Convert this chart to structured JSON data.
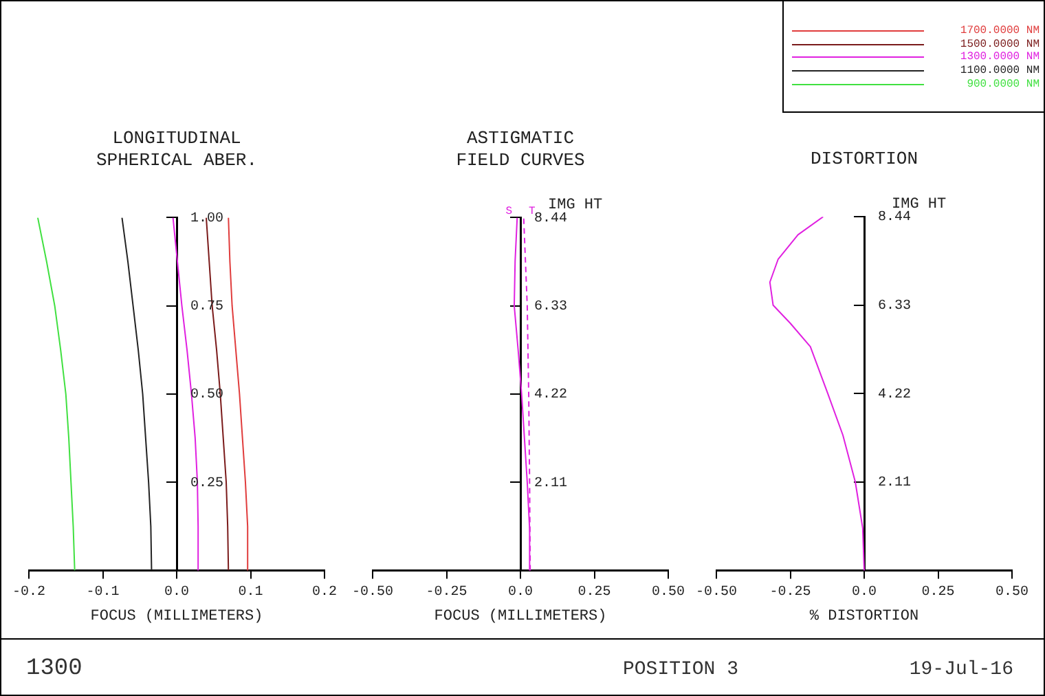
{
  "chart_data": [
    {
      "type": "line",
      "title": "LONGITUDINAL\nSPHERICAL ABER.",
      "xlabel": "FOCUS (MILLIMETERS)",
      "xlim": [
        -0.2,
        0.2
      ],
      "xticks": [
        -0.2,
        -0.1,
        {
          "value": 0,
          "label": "0.0"
        },
        0.1,
        0.2
      ],
      "ylim": [
        0,
        1
      ],
      "yticks": [
        0.25,
        {
          "value": 0.5,
          "label": "0.50"
        },
        0.75,
        {
          "value": 1,
          "label": "1.00"
        }
      ],
      "grid": false,
      "marker": "none",
      "legend": "top right",
      "series": [
        {
          "name": "1700.0000 NM",
          "color": "#e03c3c",
          "x": [
            0.097,
            0.096,
            0.093,
            0.089,
            0.085,
            0.08,
            0.075,
            0.072,
            0.07
          ],
          "values": [
            0,
            0.125,
            0.25,
            0.375,
            0.5,
            0.625,
            0.75,
            0.875,
            1
          ]
        },
        {
          "name": "1500.0000 NM",
          "color": "#7a1a1a",
          "x": [
            0.07,
            0.069,
            0.067,
            0.063,
            0.059,
            0.054,
            0.048,
            0.044,
            0.04
          ],
          "values": [
            0,
            0.125,
            0.25,
            0.375,
            0.5,
            0.625,
            0.75,
            0.875,
            1
          ]
        },
        {
          "name": "1300.0000 NM",
          "color": "#e020e0",
          "x": [
            0.03,
            0.029,
            0.028,
            0.025,
            0.02,
            0.014,
            0.007,
            0.001,
            -0.005
          ],
          "values": [
            0,
            0.125,
            0.25,
            0.375,
            0.5,
            0.625,
            0.75,
            0.875,
            1
          ]
        },
        {
          "name": "1100.0000 NM",
          "color": "#222222",
          "x": [
            -0.034,
            -0.035,
            -0.038,
            -0.042,
            -0.046,
            -0.052,
            -0.059,
            -0.066,
            -0.074
          ],
          "values": [
            0,
            0.125,
            0.25,
            0.375,
            0.5,
            0.625,
            0.75,
            0.875,
            1
          ]
        },
        {
          "name": "900.0000 NM",
          "color": "#40e040",
          "x": [
            -0.138,
            -0.14,
            -0.143,
            -0.146,
            -0.15,
            -0.157,
            -0.165,
            -0.176,
            -0.188
          ],
          "values": [
            0,
            0.125,
            0.25,
            0.375,
            0.5,
            0.625,
            0.75,
            0.875,
            1
          ]
        }
      ],
      "annotations": [
        "1300",
        "POSITION 3",
        "19-Jul-16"
      ]
    },
    {
      "type": "line",
      "title": "ASTIGMATIC\nFIELD CURVES",
      "xlabel": "FOCUS (MILLIMETERS)",
      "ylabel": "IMG HT",
      "xlim": [
        -0.5,
        0.5
      ],
      "xticks": [
        {
          "value": -0.5,
          "label": "-0.50"
        },
        -0.25,
        {
          "value": 0,
          "label": "0.0"
        },
        0.25,
        {
          "value": 0.5,
          "label": "0.50"
        }
      ],
      "ylim": [
        0,
        8.44
      ],
      "yticks": [
        2.11,
        4.22,
        6.33,
        8.44
      ],
      "grid": false,
      "marker": "none",
      "series": [
        {
          "name": "S",
          "color": "#e020e0",
          "line_style": "solid",
          "x": [
            0.034,
            0.031,
            0.023,
            0.004,
            -0.008,
            -0.021,
            -0.018,
            -0.011
          ],
          "values": [
            0,
            1,
            2.11,
            4.22,
            5.3,
            6.33,
            7.4,
            8.44
          ]
        },
        {
          "name": "T",
          "color": "#e020e0",
          "line_style": "dashed",
          "x": [
            0.033,
            0.031,
            0.028,
            0.023,
            0.011
          ],
          "values": [
            0,
            2.11,
            4.22,
            6.33,
            8.44
          ]
        }
      ]
    },
    {
      "type": "line",
      "title": "DISTORTION",
      "xlabel": "% DISTORTION",
      "ylabel": "IMG HT",
      "xlim": [
        -0.5,
        0.5
      ],
      "xticks": [
        {
          "value": -0.5,
          "label": "-0.50"
        },
        -0.25,
        {
          "value": 0,
          "label": "0.0"
        },
        0.25,
        {
          "value": 0.5,
          "label": "0.50"
        }
      ],
      "ylim": [
        0,
        8.44
      ],
      "yticks": [
        2.11,
        4.22,
        6.33,
        8.44
      ],
      "grid": false,
      "marker": "none",
      "series": [
        {
          "color": "#e020e0",
          "x": [
            0,
            -0.005,
            -0.03,
            -0.072,
            -0.123,
            -0.182,
            -0.25,
            -0.308,
            -0.319,
            -0.291,
            -0.224,
            -0.139
          ],
          "values": [
            0,
            1.01,
            2.11,
            3.23,
            4.22,
            5.34,
            5.9,
            6.33,
            6.88,
            7.43,
            8.01,
            8.44
          ]
        }
      ]
    }
  ]
}
